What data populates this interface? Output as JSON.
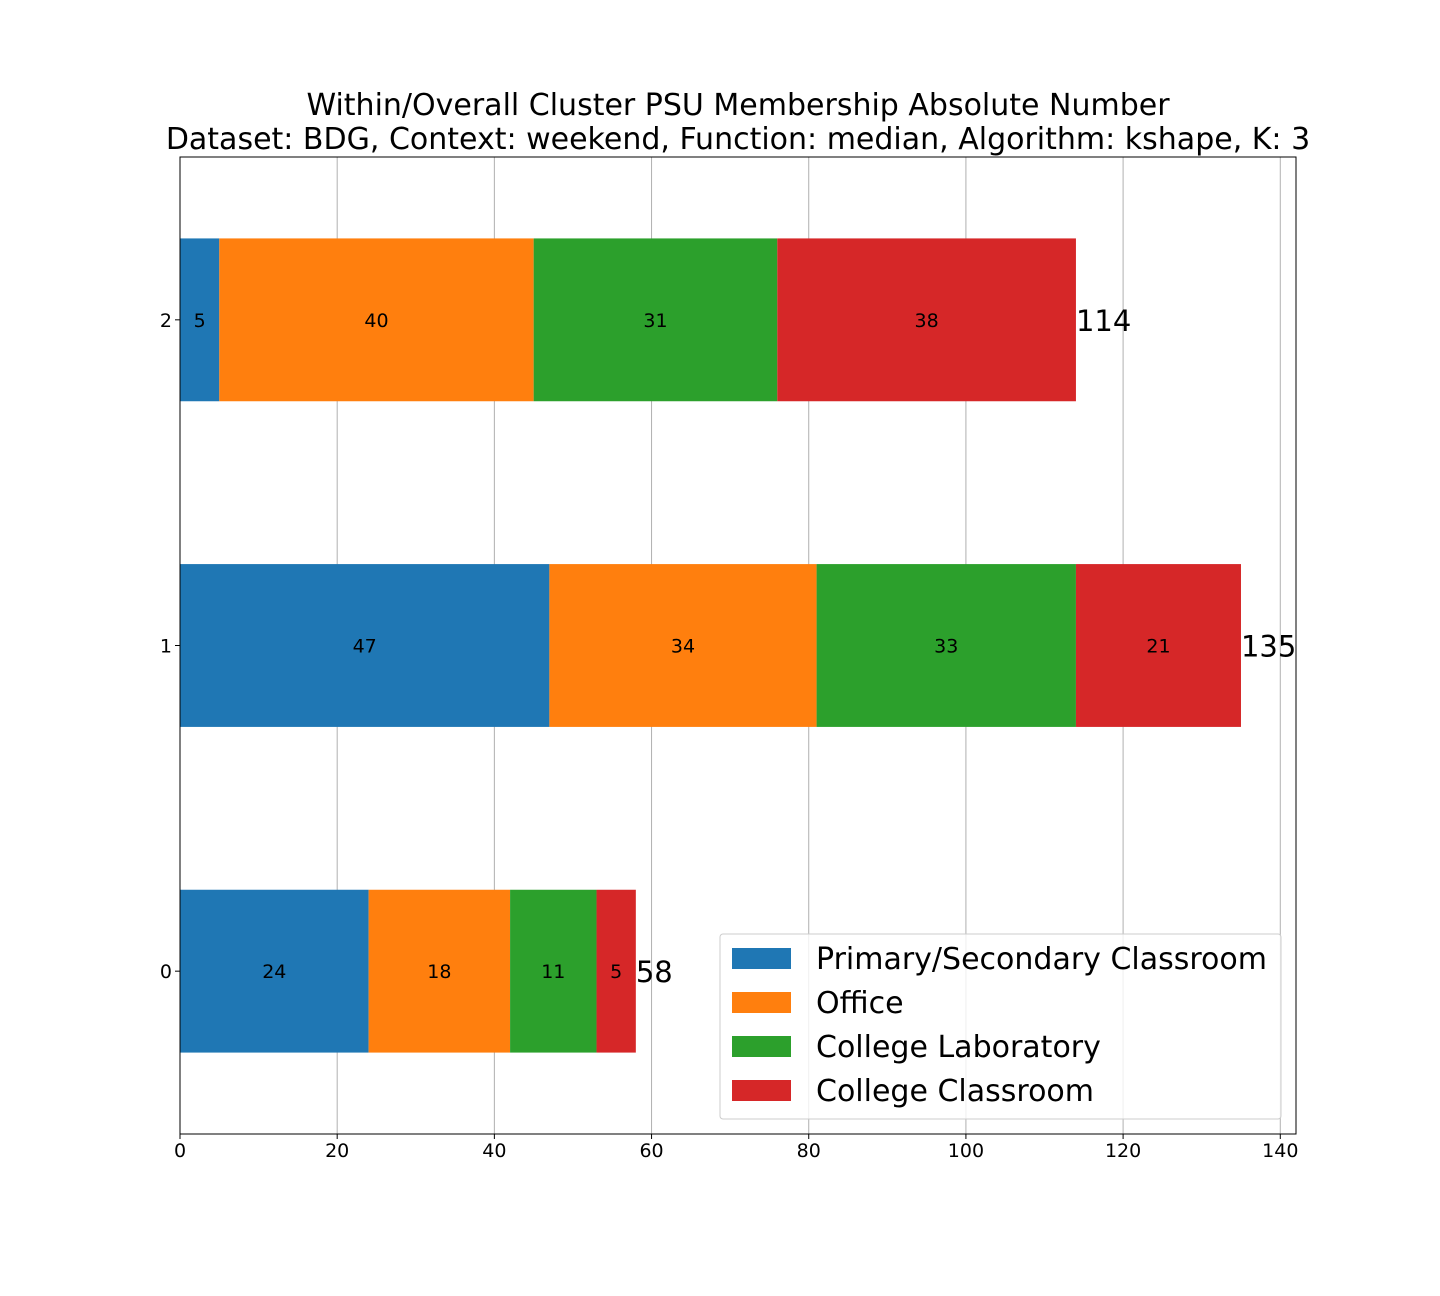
{
  "chart_data": {
    "type": "bar",
    "orientation": "horizontal",
    "stacked": true,
    "title": "Within/Overall Cluster PSU Membership Absolute Number",
    "subtitle": "Dataset: BDG, Context: weekend, Function: median, Algorithm: kshape, K: 3",
    "xlabel": "",
    "ylabel": "",
    "xlim": [
      0,
      142
    ],
    "x_ticks": [
      0,
      20,
      40,
      60,
      80,
      100,
      120,
      140
    ],
    "grid": true,
    "legend_position": "bottom-right",
    "categories": [
      "0",
      "1",
      "2"
    ],
    "series": [
      {
        "name": "Primary/Secondary Classroom",
        "color": "#1f77b4",
        "values": [
          24,
          47,
          5
        ]
      },
      {
        "name": "Office",
        "color": "#ff7f0e",
        "values": [
          18,
          34,
          40
        ]
      },
      {
        "name": "College Laboratory",
        "color": "#2ca02c",
        "values": [
          11,
          33,
          31
        ]
      },
      {
        "name": "College Classroom",
        "color": "#d62728",
        "values": [
          5,
          21,
          38
        ]
      }
    ],
    "totals": [
      58,
      135,
      114
    ]
  }
}
